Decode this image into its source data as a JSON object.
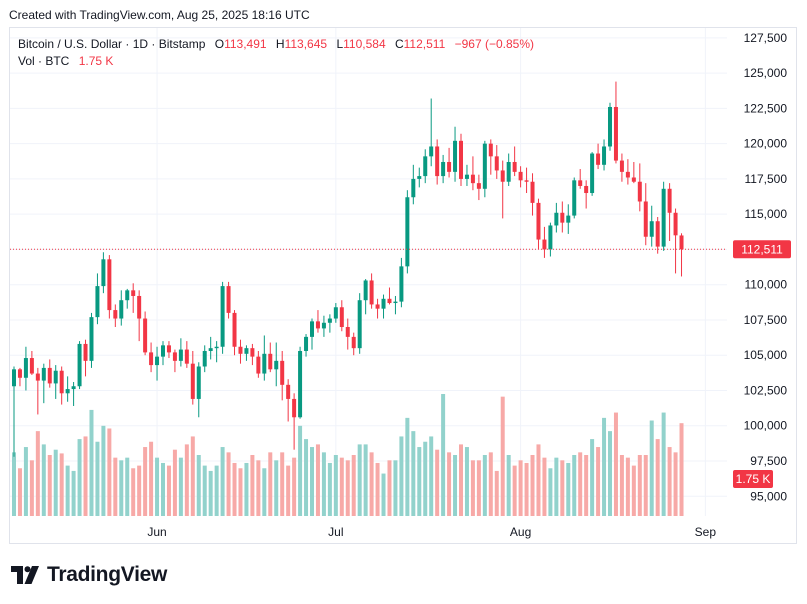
{
  "header": {
    "text": "Created with TradingView.com, Aug 25, 2025 18:16 UTC"
  },
  "legend": {
    "symbol": "Bitcoin / U.S. Dollar · 1D · Bitstamp",
    "o_label": "O",
    "o_value": "113,491",
    "h_label": "H",
    "h_value": "113,645",
    "l_label": "L",
    "l_value": "110,584",
    "c_label": "C",
    "c_value": "112,511",
    "change": "−967 (−0.85%)",
    "vol_label": "Vol · BTC",
    "vol_value": "1.75 K"
  },
  "logo": {
    "text": "TradingView"
  },
  "colors": {
    "up": "#089981",
    "down": "#f23645",
    "vol_up": "#92d2cc",
    "vol_down": "#f7a9a7",
    "grid": "#f0f3fa"
  },
  "chart_data": {
    "type": "candlestick",
    "title": "Bitcoin / U.S. Dollar · 1D · Bitstamp",
    "y_ticks": [
      127500,
      125000,
      122500,
      120000,
      117500,
      115000,
      112500,
      110000,
      107500,
      105000,
      102500,
      100000,
      97500,
      95000
    ],
    "x_ticks": [
      {
        "label": "Jun",
        "index": 24
      },
      {
        "label": "Jul",
        "index": 54
      },
      {
        "label": "Aug",
        "index": 85
      },
      {
        "label": "Sep",
        "index": 116
      }
    ],
    "ylim": [
      93600,
      128200
    ],
    "last_price": {
      "label": "112,511",
      "value": 112511
    },
    "last_volume": {
      "label": "1.75 K",
      "value": 1750
    },
    "candles": [
      [
        102800,
        104200,
        97800,
        104000,
        1200
      ],
      [
        104000,
        104100,
        102800,
        103400,
        900
      ],
      [
        103400,
        105600,
        102500,
        104800,
        1300
      ],
      [
        104800,
        105300,
        103600,
        103700,
        1050
      ],
      [
        103700,
        104100,
        100800,
        103200,
        1600
      ],
      [
        103200,
        104400,
        101600,
        104100,
        1350
      ],
      [
        104100,
        104700,
        102700,
        103000,
        1150
      ],
      [
        103000,
        104300,
        101900,
        103900,
        1250
      ],
      [
        103900,
        104200,
        101500,
        102300,
        1180
      ],
      [
        102300,
        103500,
        101700,
        102600,
        950
      ],
      [
        102600,
        103100,
        101400,
        102800,
        850
      ],
      [
        102800,
        106000,
        102600,
        105800,
        1450
      ],
      [
        105800,
        106100,
        103500,
        104600,
        1500
      ],
      [
        104600,
        108000,
        104100,
        107700,
        2000
      ],
      [
        107700,
        110800,
        107200,
        109900,
        1400
      ],
      [
        109900,
        112300,
        109400,
        111800,
        1700
      ],
      [
        111800,
        112100,
        107600,
        108200,
        1650
      ],
      [
        108200,
        108600,
        107000,
        107600,
        1100
      ],
      [
        107600,
        109600,
        107100,
        108900,
        1050
      ],
      [
        108900,
        109700,
        108300,
        109600,
        1100
      ],
      [
        109600,
        110100,
        108000,
        109200,
        900
      ],
      [
        109200,
        109600,
        106000,
        107600,
        950
      ],
      [
        107600,
        108100,
        105000,
        105200,
        1300
      ],
      [
        105200,
        105900,
        103800,
        104300,
        1400
      ],
      [
        104300,
        105600,
        103200,
        104900,
        1100
      ],
      [
        104900,
        106000,
        104300,
        105700,
        1000
      ],
      [
        105700,
        106000,
        104800,
        105200,
        950
      ],
      [
        105200,
        105400,
        103800,
        104600,
        1250
      ],
      [
        104600,
        106200,
        104200,
        105400,
        1100
      ],
      [
        105400,
        106000,
        104100,
        104400,
        1350
      ],
      [
        104400,
        105300,
        101500,
        101900,
        1500
      ],
      [
        101900,
        104500,
        100600,
        104200,
        1150
      ],
      [
        104200,
        105700,
        103800,
        105300,
        950
      ],
      [
        105300,
        106300,
        104700,
        105500,
        850
      ],
      [
        105500,
        106000,
        104500,
        105600,
        950
      ],
      [
        105600,
        110200,
        105100,
        109900,
        1300
      ],
      [
        109900,
        110200,
        107600,
        108000,
        1200
      ],
      [
        108000,
        108200,
        105000,
        105600,
        1000
      ],
      [
        105600,
        106100,
        104400,
        105100,
        900
      ],
      [
        105100,
        105700,
        104600,
        105500,
        1000
      ],
      [
        105500,
        105800,
        104300,
        104900,
        1150
      ],
      [
        104900,
        105300,
        103400,
        103700,
        1050
      ],
      [
        103700,
        106400,
        103200,
        105100,
        900
      ],
      [
        105100,
        105900,
        103800,
        104000,
        1200
      ],
      [
        104000,
        105900,
        102800,
        104600,
        1050
      ],
      [
        104600,
        105300,
        101800,
        102900,
        1200
      ],
      [
        102900,
        103300,
        100300,
        101900,
        950
      ],
      [
        101900,
        102300,
        98300,
        100600,
        1100
      ],
      [
        100600,
        105600,
        100500,
        105300,
        1700
      ],
      [
        105300,
        106500,
        104900,
        106300,
        1450
      ],
      [
        106300,
        107600,
        105400,
        107400,
        1300
      ],
      [
        107400,
        108200,
        106600,
        106900,
        1350
      ],
      [
        106900,
        107800,
        106300,
        107300,
        1200
      ],
      [
        107300,
        107900,
        106600,
        107600,
        1000
      ],
      [
        107600,
        108700,
        107300,
        108400,
        1150
      ],
      [
        108400,
        108900,
        106700,
        107000,
        1100
      ],
      [
        107000,
        107600,
        105400,
        106300,
        1050
      ],
      [
        106300,
        106600,
        105000,
        105500,
        1150
      ],
      [
        105500,
        109400,
        105100,
        108900,
        1350
      ],
      [
        108900,
        110400,
        107900,
        110300,
        1350
      ],
      [
        110300,
        110800,
        108300,
        108600,
        1200
      ],
      [
        108600,
        109000,
        107600,
        108300,
        1000
      ],
      [
        108300,
        109300,
        107600,
        109000,
        800
      ],
      [
        109000,
        109800,
        108600,
        108700,
        1050
      ],
      [
        108700,
        109200,
        107900,
        108800,
        1050
      ],
      [
        108800,
        111900,
        108400,
        111300,
        1500
      ],
      [
        111300,
        116700,
        110800,
        116200,
        1850
      ],
      [
        116200,
        118500,
        115700,
        117500,
        1600
      ],
      [
        117500,
        118300,
        116900,
        117700,
        1300
      ],
      [
        117700,
        119600,
        117200,
        119100,
        1400
      ],
      [
        119100,
        123200,
        118400,
        119800,
        1500
      ],
      [
        119800,
        120300,
        117100,
        117700,
        1250
      ],
      [
        117700,
        119200,
        117200,
        118700,
        2300
      ],
      [
        118700,
        119700,
        117600,
        118000,
        1200
      ],
      [
        118000,
        121200,
        117300,
        120200,
        1150
      ],
      [
        120200,
        120700,
        117000,
        117500,
        1350
      ],
      [
        117500,
        118500,
        117000,
        117800,
        1300
      ],
      [
        117800,
        119100,
        116700,
        117200,
        1050
      ],
      [
        117200,
        117800,
        116000,
        116800,
        1050
      ],
      [
        116800,
        120200,
        116200,
        120000,
        1150
      ],
      [
        120000,
        120300,
        117800,
        119100,
        1200
      ],
      [
        119100,
        119900,
        117500,
        118100,
        850
      ],
      [
        118100,
        118800,
        114700,
        117300,
        2250
      ],
      [
        117300,
        119300,
        117000,
        118700,
        1150
      ],
      [
        118700,
        119800,
        117700,
        118000,
        950
      ],
      [
        118000,
        118400,
        116900,
        117400,
        1050
      ],
      [
        117400,
        118300,
        116500,
        117300,
        1000
      ],
      [
        117300,
        117900,
        114900,
        115800,
        1150
      ],
      [
        115800,
        116100,
        112500,
        113200,
        1350
      ],
      [
        113200,
        114100,
        111900,
        112500,
        1100
      ],
      [
        112500,
        114400,
        112000,
        114200,
        900
      ],
      [
        114200,
        115800,
        113700,
        115100,
        1100
      ],
      [
        115100,
        115900,
        113700,
        114400,
        1050
      ],
      [
        114400,
        115700,
        113600,
        114900,
        1000
      ],
      [
        114900,
        117600,
        114700,
        117400,
        1150
      ],
      [
        117400,
        118200,
        116800,
        117000,
        1200
      ],
      [
        117000,
        117400,
        115400,
        116500,
        1150
      ],
      [
        116500,
        119400,
        116300,
        119300,
        1450
      ],
      [
        119300,
        120000,
        118200,
        118500,
        1300
      ],
      [
        118500,
        120300,
        118100,
        119800,
        1850
      ],
      [
        119800,
        122900,
        119500,
        122600,
        1600
      ],
      [
        122600,
        124400,
        118600,
        118800,
        1950
      ],
      [
        118800,
        119300,
        117300,
        118000,
        1150
      ],
      [
        118000,
        118900,
        117100,
        117600,
        1100
      ],
      [
        117600,
        118700,
        117200,
        117300,
        950
      ],
      [
        117300,
        118600,
        115200,
        115900,
        1150
      ],
      [
        115900,
        117200,
        112800,
        113400,
        1150
      ],
      [
        113400,
        115600,
        112700,
        114500,
        1800
      ],
      [
        114500,
        114800,
        112200,
        112700,
        1450
      ],
      [
        112700,
        117300,
        112400,
        116800,
        1950
      ],
      [
        116800,
        117200,
        113100,
        115100,
        1300
      ],
      [
        115100,
        115400,
        110800,
        113500,
        1200
      ],
      [
        113491,
        113645,
        110584,
        112511,
        1750
      ]
    ]
  }
}
